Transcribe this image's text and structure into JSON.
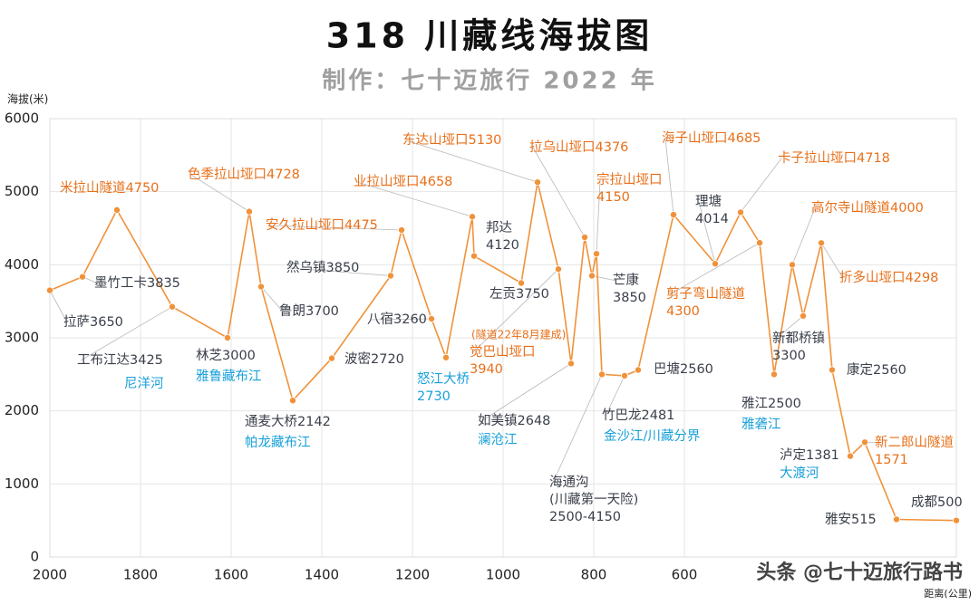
{
  "chart_data": {
    "type": "line",
    "title": "318 川藏线海拔图",
    "subtitle": "制作：七十迈旅行 2022 年",
    "y_label": "海拔(米)",
    "x_label": "距离(公里)",
    "watermark": "头条 @七十迈旅行路书",
    "xlim": [
      2000,
      0
    ],
    "ylim": [
      0,
      6000
    ],
    "xticks": [
      2000,
      1800,
      1600,
      1400,
      1200,
      1000,
      800,
      600
    ],
    "yticks": [
      0,
      1000,
      2000,
      3000,
      4000,
      5000,
      6000
    ],
    "grid": true,
    "color": "#f0923a",
    "x": [
      2000,
      1928,
      1852,
      1730,
      1608,
      1560,
      1534,
      1464,
      1378,
      1248,
      1224,
      1158,
      1126,
      1068,
      1064,
      960,
      924,
      878,
      850,
      820,
      804,
      794,
      782,
      732,
      702,
      624,
      532,
      476,
      434,
      402,
      362,
      338,
      298,
      274,
      234,
      202,
      132,
      0
    ],
    "values": [
      3650,
      3835,
      4750,
      3425,
      3000,
      4728,
      3700,
      2142,
      2720,
      3850,
      4475,
      3260,
      2730,
      4658,
      4120,
      3750,
      5130,
      3940,
      2648,
      4376,
      3850,
      4150,
      2500,
      2481,
      2560,
      4685,
      4014,
      4718,
      4300,
      2500,
      4000,
      3300,
      4298,
      2560,
      1381,
      1571,
      515,
      500
    ],
    "value_labels": [
      "拉萨3650",
      "墨竹工卡3835",
      "米拉山隧道4750",
      "工布江达3425",
      "林芝3000",
      "色季拉山垭口4728",
      "鲁朗3700",
      "通麦大桥2142",
      "波密2720",
      "然乌镇3850",
      "安久拉山垭口4475",
      "八宿3260",
      "怒江大桥\n2730",
      "业拉山垭口4658",
      "邦达\n4120",
      "左贡3750",
      "东达山垭口5130",
      "觉巴山垭口\n3940",
      "如美镇2648",
      "拉乌山垭口4376",
      "芒康\n3850",
      "宗拉山垭口\n4150",
      "海通沟\n(川藏第一天险)\n2500-4150",
      "竹巴龙2481",
      "巴塘2560",
      "海子山垭口4685",
      "理塘\n4014",
      "卡子拉山垭口4718",
      "剪子弯山隧道\n4300",
      "雅江2500",
      "高尔寺山隧道4000",
      "新都桥镇\n3300",
      "折多山垭口4298",
      "康定2560",
      "泸定1381",
      "新二郎山隧道\n1571",
      "雅安515",
      "成都500"
    ],
    "annotations": [
      "(隧道22年8月建成)",
      "尼洋河",
      "雅鲁藏布江",
      "帕龙藏布江",
      "澜沧江",
      "金沙江/川藏分界",
      "雅砻江",
      "大渡河"
    ]
  }
}
